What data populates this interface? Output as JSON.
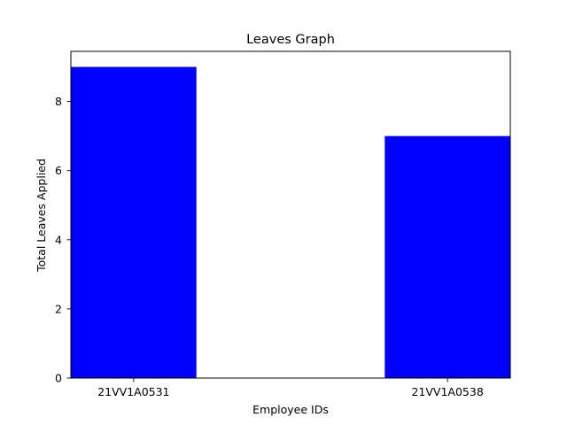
{
  "chart_data": {
    "type": "bar",
    "title": "Leaves Graph",
    "xlabel": "Employee IDs",
    "ylabel": "Total Leaves Applied",
    "categories": [
      "21VV1A0531",
      "21VV1A0538"
    ],
    "values": [
      9,
      7
    ],
    "ylim": [
      0,
      9.45
    ],
    "yticks": [
      "0",
      "2",
      "4",
      "6",
      "8"
    ],
    "bar_color": "#0000ff",
    "grid": false,
    "legend": "none"
  }
}
